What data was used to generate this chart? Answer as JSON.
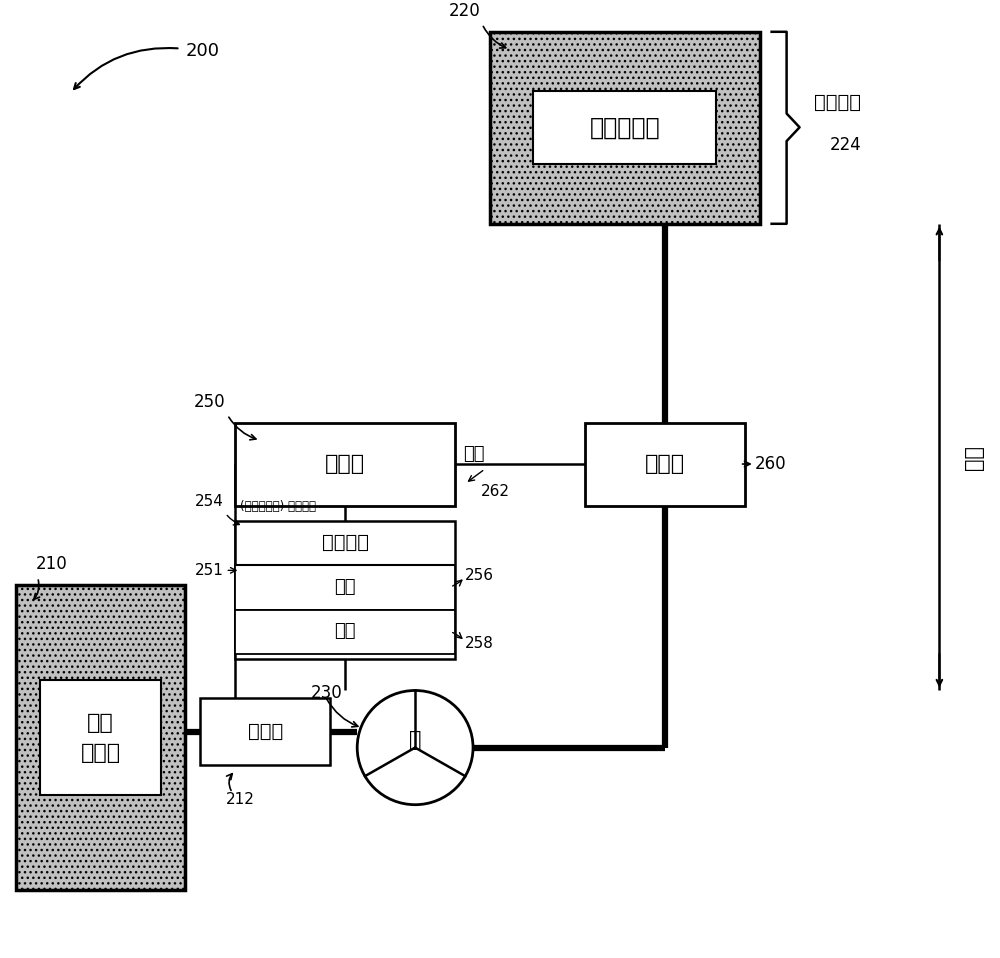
{
  "bg_color": "#ffffff",
  "label_200": "200",
  "label_210": "210",
  "label_212": "212",
  "label_220": "220",
  "label_224": "224",
  "label_230": "230",
  "label_250": "250",
  "label_251": "251",
  "label_254": "254",
  "label_256": "256",
  "label_258": "258",
  "label_260": "260",
  "label_262": "262",
  "text_reservoir1_line1": "第一",
  "text_reservoir1_line2": "储存器",
  "text_reservoir2": "第二储存器",
  "text_detector": "检测器",
  "text_controller": "控制器",
  "text_sensor": "传感器",
  "text_pump": "泵",
  "text_pump_state": "泵送状态",
  "text_pump_times": "(一个或多个) 泵送时间",
  "text_voltage": "电压",
  "text_current": "电流",
  "text_pressure": "压力",
  "text_full_state": "充满状态",
  "text_height": "高度",
  "thick_lw": 4.5,
  "thin_lw": 1.8,
  "fig_w": 10.0,
  "fig_h": 9.58,
  "dpi": 100
}
